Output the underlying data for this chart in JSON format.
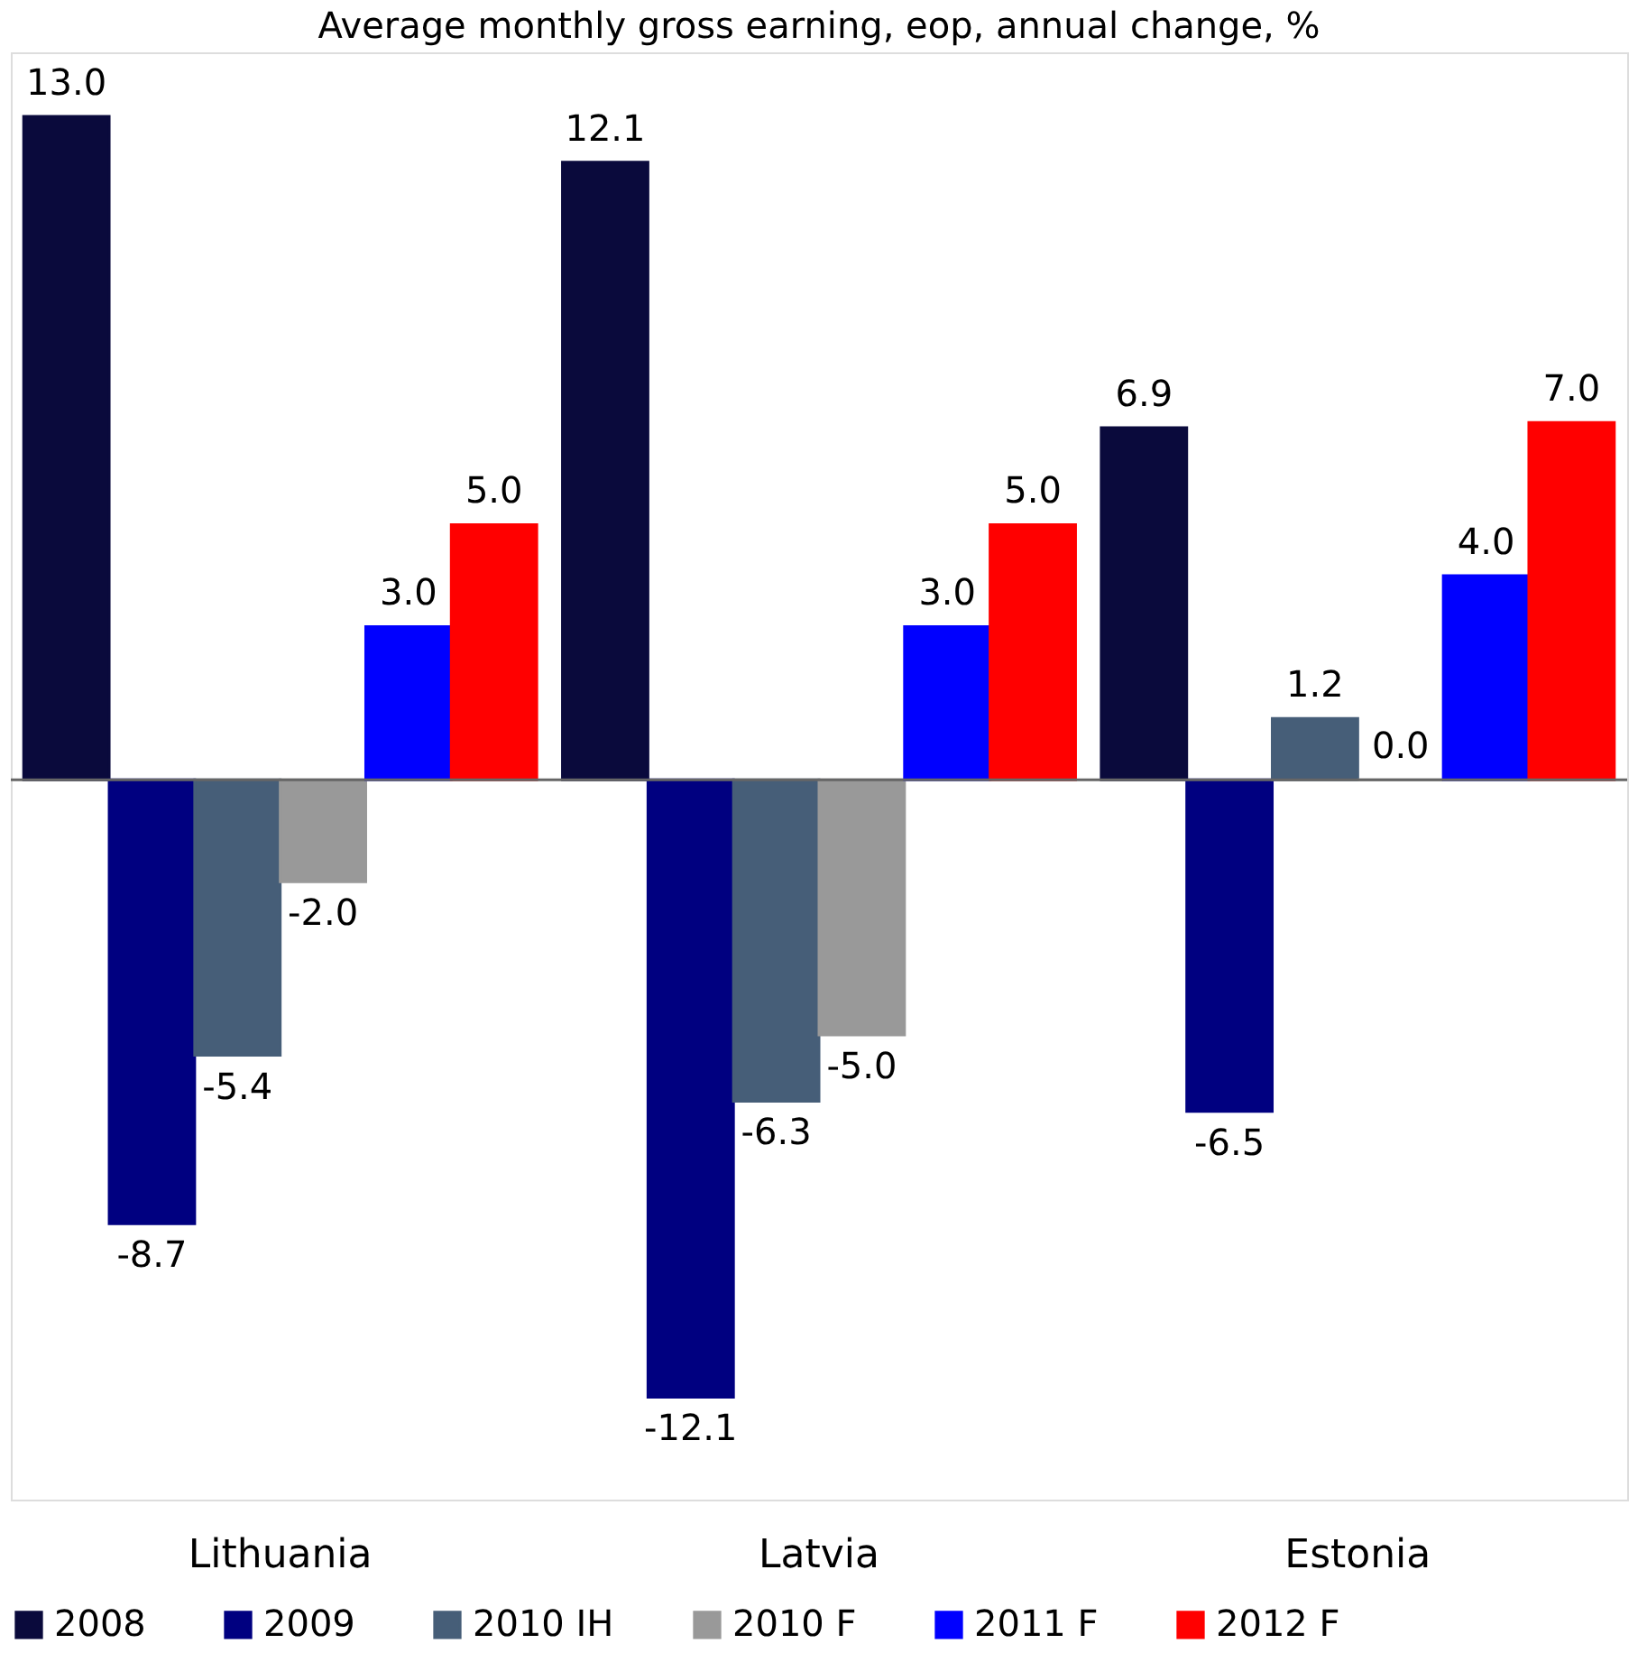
{
  "chart_data": {
    "type": "bar",
    "title": "Average monthly gross earning, eop, annual change, %",
    "categories": [
      "Lithuania",
      "Latvia",
      "Estonia"
    ],
    "series": [
      {
        "name": "2008",
        "color": "#0a0a3c",
        "values": [
          13.0,
          12.1,
          6.9
        ],
        "value_labels": [
          "13.0",
          "12.1",
          "6.9"
        ]
      },
      {
        "name": "2009",
        "color": "#000080",
        "values": [
          -8.7,
          -12.1,
          -6.5
        ],
        "value_labels": [
          "-8.7",
          "-12.1",
          "-6.5"
        ]
      },
      {
        "name": "2010 IH",
        "color": "#465e78",
        "values": [
          -5.4,
          -6.3,
          1.2
        ],
        "value_labels": [
          "-5.4",
          "-6.3",
          "1.2"
        ]
      },
      {
        "name": "2010 F",
        "color": "#999999",
        "values": [
          -2.0,
          -5.0,
          0.0
        ],
        "value_labels": [
          "-2.0",
          "-5.0",
          "0.0"
        ]
      },
      {
        "name": "2011 F",
        "color": "#0000ff",
        "values": [
          3.0,
          3.0,
          4.0
        ],
        "value_labels": [
          "3.0",
          "3.0",
          "4.0"
        ]
      },
      {
        "name": "2012 F",
        "color": "#ff0000",
        "values": [
          5.0,
          5.0,
          7.0
        ],
        "value_labels": [
          "5.0",
          "5.0",
          "7.0"
        ]
      }
    ],
    "legend": "bottom",
    "grid": false
  }
}
